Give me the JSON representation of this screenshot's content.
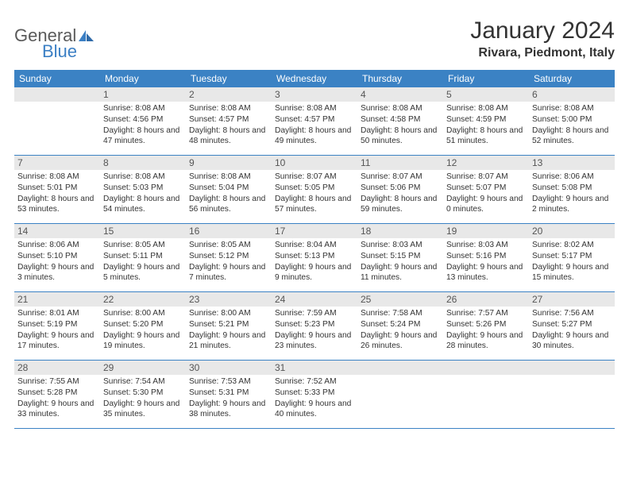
{
  "brand": {
    "text1": "General",
    "text2": "Blue",
    "text_color": "#5a5a5a",
    "accent_color": "#3b7fc4"
  },
  "title": "January 2024",
  "location": "Rivara, Piedmont, Italy",
  "header_bg": "#3b82c4",
  "header_fg": "#ffffff",
  "daynum_bg": "#e8e8e8",
  "cell_border": "#3b82c4",
  "weekdays": [
    "Sunday",
    "Monday",
    "Tuesday",
    "Wednesday",
    "Thursday",
    "Friday",
    "Saturday"
  ],
  "first_weekday_offset": 1,
  "days": [
    {
      "n": 1,
      "sunrise": "8:08 AM",
      "sunset": "4:56 PM",
      "daylight": "8 hours and 47 minutes."
    },
    {
      "n": 2,
      "sunrise": "8:08 AM",
      "sunset": "4:57 PM",
      "daylight": "8 hours and 48 minutes."
    },
    {
      "n": 3,
      "sunrise": "8:08 AM",
      "sunset": "4:57 PM",
      "daylight": "8 hours and 49 minutes."
    },
    {
      "n": 4,
      "sunrise": "8:08 AM",
      "sunset": "4:58 PM",
      "daylight": "8 hours and 50 minutes."
    },
    {
      "n": 5,
      "sunrise": "8:08 AM",
      "sunset": "4:59 PM",
      "daylight": "8 hours and 51 minutes."
    },
    {
      "n": 6,
      "sunrise": "8:08 AM",
      "sunset": "5:00 PM",
      "daylight": "8 hours and 52 minutes."
    },
    {
      "n": 7,
      "sunrise": "8:08 AM",
      "sunset": "5:01 PM",
      "daylight": "8 hours and 53 minutes."
    },
    {
      "n": 8,
      "sunrise": "8:08 AM",
      "sunset": "5:03 PM",
      "daylight": "8 hours and 54 minutes."
    },
    {
      "n": 9,
      "sunrise": "8:08 AM",
      "sunset": "5:04 PM",
      "daylight": "8 hours and 56 minutes."
    },
    {
      "n": 10,
      "sunrise": "8:07 AM",
      "sunset": "5:05 PM",
      "daylight": "8 hours and 57 minutes."
    },
    {
      "n": 11,
      "sunrise": "8:07 AM",
      "sunset": "5:06 PM",
      "daylight": "8 hours and 59 minutes."
    },
    {
      "n": 12,
      "sunrise": "8:07 AM",
      "sunset": "5:07 PM",
      "daylight": "9 hours and 0 minutes."
    },
    {
      "n": 13,
      "sunrise": "8:06 AM",
      "sunset": "5:08 PM",
      "daylight": "9 hours and 2 minutes."
    },
    {
      "n": 14,
      "sunrise": "8:06 AM",
      "sunset": "5:10 PM",
      "daylight": "9 hours and 3 minutes."
    },
    {
      "n": 15,
      "sunrise": "8:05 AM",
      "sunset": "5:11 PM",
      "daylight": "9 hours and 5 minutes."
    },
    {
      "n": 16,
      "sunrise": "8:05 AM",
      "sunset": "5:12 PM",
      "daylight": "9 hours and 7 minutes."
    },
    {
      "n": 17,
      "sunrise": "8:04 AM",
      "sunset": "5:13 PM",
      "daylight": "9 hours and 9 minutes."
    },
    {
      "n": 18,
      "sunrise": "8:03 AM",
      "sunset": "5:15 PM",
      "daylight": "9 hours and 11 minutes."
    },
    {
      "n": 19,
      "sunrise": "8:03 AM",
      "sunset": "5:16 PM",
      "daylight": "9 hours and 13 minutes."
    },
    {
      "n": 20,
      "sunrise": "8:02 AM",
      "sunset": "5:17 PM",
      "daylight": "9 hours and 15 minutes."
    },
    {
      "n": 21,
      "sunrise": "8:01 AM",
      "sunset": "5:19 PM",
      "daylight": "9 hours and 17 minutes."
    },
    {
      "n": 22,
      "sunrise": "8:00 AM",
      "sunset": "5:20 PM",
      "daylight": "9 hours and 19 minutes."
    },
    {
      "n": 23,
      "sunrise": "8:00 AM",
      "sunset": "5:21 PM",
      "daylight": "9 hours and 21 minutes."
    },
    {
      "n": 24,
      "sunrise": "7:59 AM",
      "sunset": "5:23 PM",
      "daylight": "9 hours and 23 minutes."
    },
    {
      "n": 25,
      "sunrise": "7:58 AM",
      "sunset": "5:24 PM",
      "daylight": "9 hours and 26 minutes."
    },
    {
      "n": 26,
      "sunrise": "7:57 AM",
      "sunset": "5:26 PM",
      "daylight": "9 hours and 28 minutes."
    },
    {
      "n": 27,
      "sunrise": "7:56 AM",
      "sunset": "5:27 PM",
      "daylight": "9 hours and 30 minutes."
    },
    {
      "n": 28,
      "sunrise": "7:55 AM",
      "sunset": "5:28 PM",
      "daylight": "9 hours and 33 minutes."
    },
    {
      "n": 29,
      "sunrise": "7:54 AM",
      "sunset": "5:30 PM",
      "daylight": "9 hours and 35 minutes."
    },
    {
      "n": 30,
      "sunrise": "7:53 AM",
      "sunset": "5:31 PM",
      "daylight": "9 hours and 38 minutes."
    },
    {
      "n": 31,
      "sunrise": "7:52 AM",
      "sunset": "5:33 PM",
      "daylight": "9 hours and 40 minutes."
    }
  ],
  "labels": {
    "sunrise": "Sunrise:",
    "sunset": "Sunset:",
    "daylight": "Daylight:"
  }
}
